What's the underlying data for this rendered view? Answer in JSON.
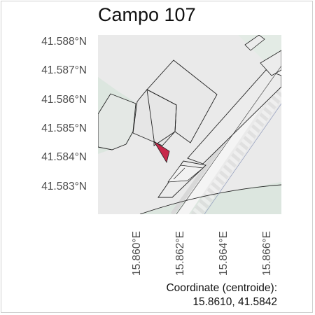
{
  "title": "Campo 107",
  "map": {
    "lat_labels": [
      "41.588°N",
      "41.587°N",
      "41.586°N",
      "41.585°N",
      "41.584°N",
      "41.583°N"
    ],
    "lon_labels": [
      "15.860°E",
      "15.862°E",
      "15.864°E",
      "15.866°E"
    ],
    "colors": {
      "background": "#eaeaea",
      "green_area": "#dce6df",
      "building": "#e9e9e9",
      "road": "#f6f6f6",
      "highlight": "#c8284a"
    }
  },
  "coords": {
    "label": "Coordinate (centroide):",
    "value": "15.8610, 41.5842"
  }
}
